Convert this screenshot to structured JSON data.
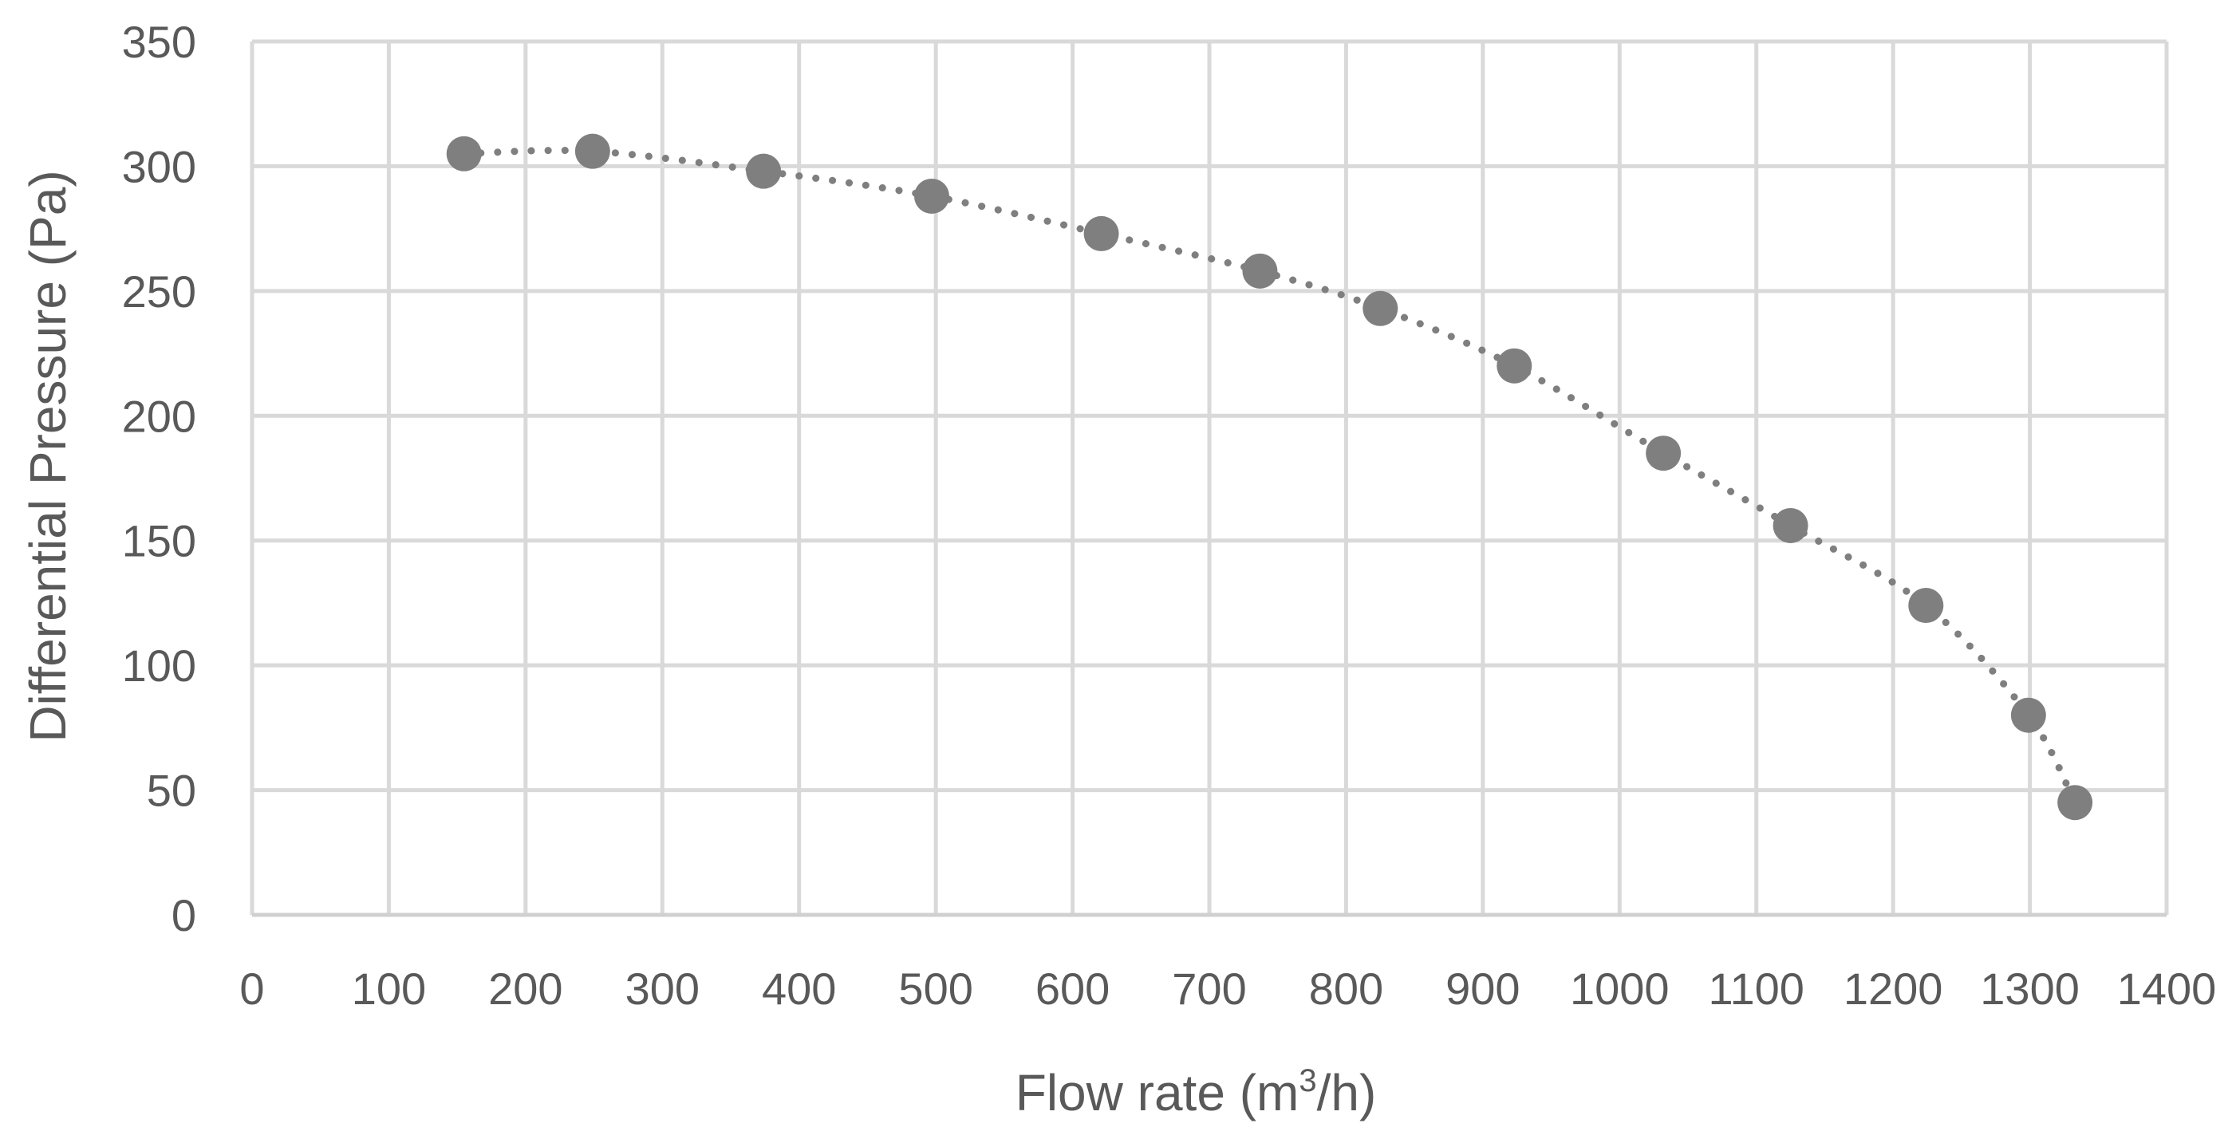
{
  "chart_data": {
    "type": "scatter",
    "title": "",
    "xlabel": "Flow rate (m3/h)",
    "xlabel_parts": {
      "before": "Flow rate (m",
      "superscript": "3",
      "after": "/h)"
    },
    "ylabel": "Differential Pressure (Pa)",
    "xlim": [
      0,
      1400
    ],
    "ylim": [
      0,
      350
    ],
    "x_ticks": [
      0,
      100,
      200,
      300,
      400,
      500,
      600,
      700,
      800,
      900,
      1000,
      1100,
      1200,
      1300,
      1400
    ],
    "y_ticks": [
      0,
      50,
      100,
      150,
      200,
      250,
      300,
      350
    ],
    "grid": true,
    "legend": "none",
    "trendline": "dotted",
    "series": [
      {
        "name": "Differential Pressure",
        "color": "#7f7f7f",
        "x": [
          155,
          249,
          374,
          497,
          621,
          737,
          825,
          923,
          1032,
          1125,
          1224,
          1299,
          1333
        ],
        "y": [
          305,
          306,
          298,
          288,
          273,
          258,
          243,
          220,
          185,
          156,
          124,
          80,
          45
        ]
      }
    ]
  }
}
